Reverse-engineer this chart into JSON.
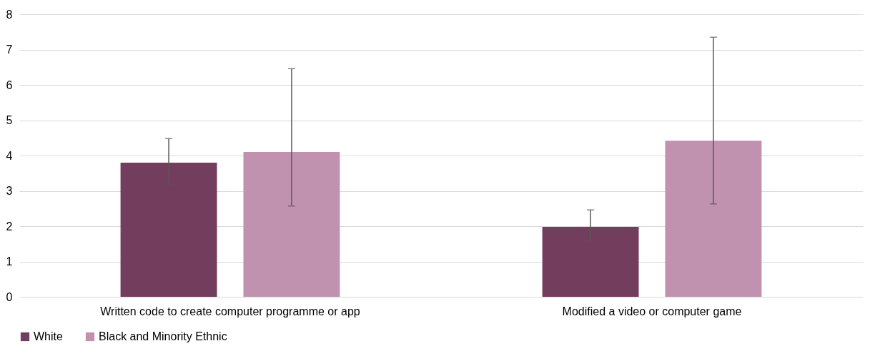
{
  "chart_data": {
    "type": "bar",
    "categories": [
      "Written code to create computer programme or app",
      "Modified a video or computer game"
    ],
    "series": [
      {
        "name": "White",
        "color": "#733d5e",
        "values": [
          3.8,
          1.98
        ],
        "errors": [
          [
            3.19,
            4.48
          ],
          [
            1.6,
            2.46
          ]
        ]
      },
      {
        "name": "Black and Minority Ethnic",
        "color": "#c192af",
        "values": [
          4.1,
          4.42
        ],
        "errors": [
          [
            2.57,
            6.46
          ],
          [
            2.63,
            7.35
          ]
        ]
      }
    ],
    "ylim": [
      0,
      8
    ],
    "yticks": [
      0,
      1,
      2,
      3,
      4,
      5,
      6,
      7,
      8
    ],
    "grid": "y",
    "legend": "bottom"
  }
}
